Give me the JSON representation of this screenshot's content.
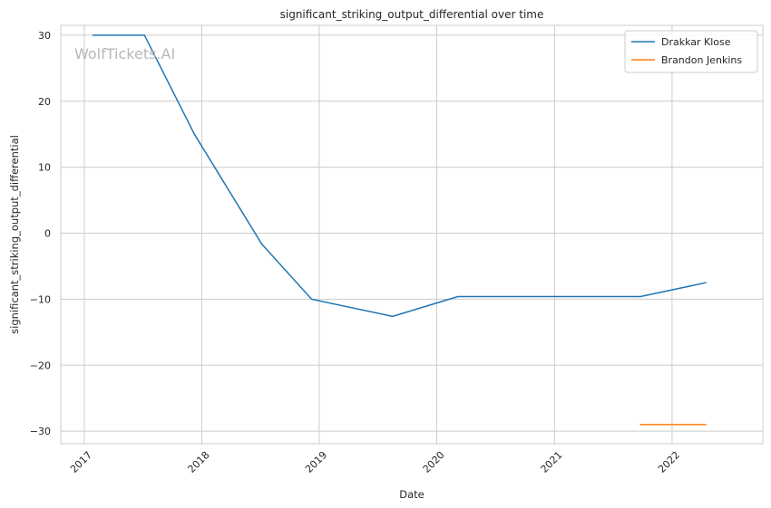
{
  "chart_data": {
    "type": "line",
    "title": "significant_striking_output_differential over time",
    "xlabel": "Date",
    "ylabel": "significant_striking_output_differential",
    "watermark": "WolfTickets.AI",
    "x_ticks": [
      "2017",
      "2018",
      "2019",
      "2020",
      "2021",
      "2022"
    ],
    "y_ticks": [
      30,
      20,
      10,
      0,
      -10,
      -20,
      -30
    ],
    "xlim": [
      "2016-10-20",
      "2022-10-10"
    ],
    "ylim": [
      -31.9,
      31.5
    ],
    "grid": true,
    "legend_position": "top-right",
    "series": [
      {
        "name": "Drakkar Klose",
        "color": "#1f77b4",
        "points": [
          {
            "x": "2017-01-28",
            "y": 30
          },
          {
            "x": "2017-07-07",
            "y": 30
          },
          {
            "x": "2017-12-09",
            "y": 15
          },
          {
            "x": "2018-07-06",
            "y": -1.6
          },
          {
            "x": "2018-12-08",
            "y": -10
          },
          {
            "x": "2019-08-17",
            "y": -12.6
          },
          {
            "x": "2020-03-07",
            "y": -9.6
          },
          {
            "x": "2021-09-25",
            "y": -9.6
          },
          {
            "x": "2022-04-16",
            "y": -7.5
          }
        ]
      },
      {
        "name": "Brandon Jenkins",
        "color": "#ff7f0e",
        "points": [
          {
            "x": "2021-09-25",
            "y": -29
          },
          {
            "x": "2022-04-16",
            "y": -29
          }
        ]
      }
    ]
  }
}
